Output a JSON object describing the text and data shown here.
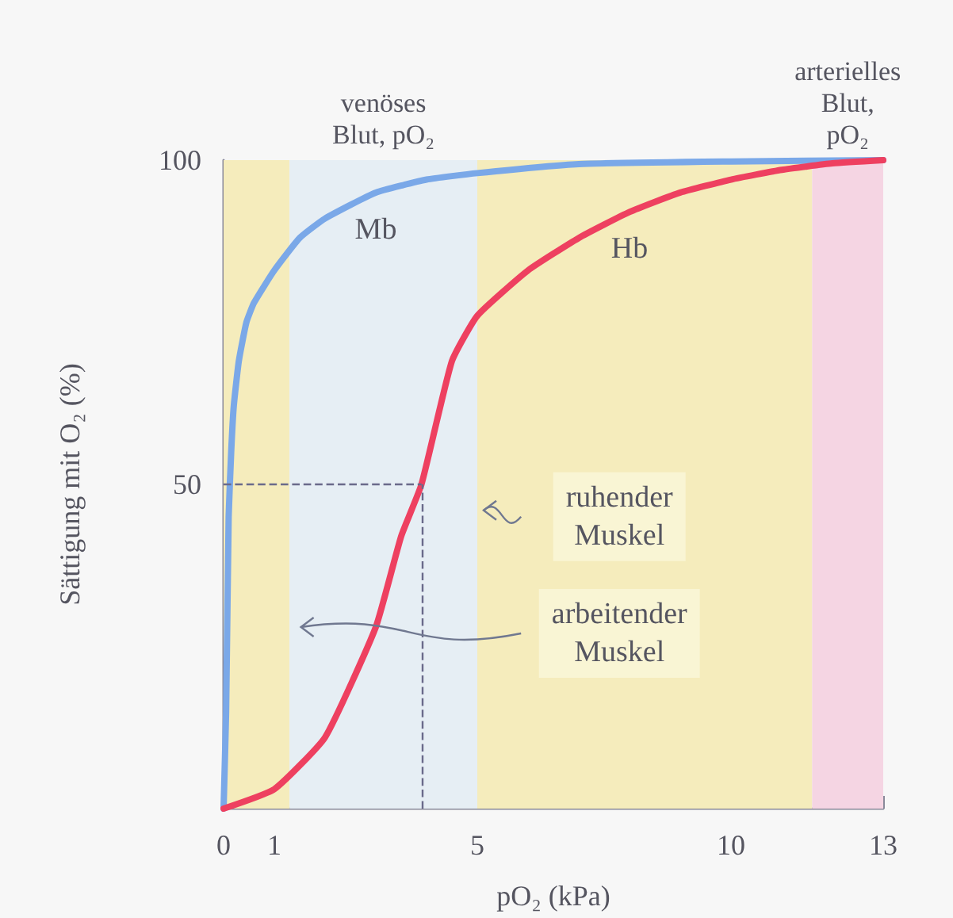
{
  "chart_data": {
    "type": "line",
    "xlabel": "pO₂ (kPa)",
    "ylabel": "Sättigung mit O₂ (%)",
    "x": [
      0,
      0.05,
      0.1,
      0.15,
      0.2,
      0.3,
      0.45,
      0.6,
      1,
      1.5,
      2,
      3,
      4,
      5,
      7,
      10,
      13
    ],
    "series": [
      {
        "name": "Mb",
        "color": "#7aa8e8",
        "values": [
          0,
          15,
          45,
          55,
          62,
          69,
          75,
          78,
          83,
          88,
          91,
          95,
          97,
          98,
          99.4,
          99.8,
          100
        ]
      },
      {
        "name": "Hb",
        "color": "#ee4060",
        "x": [
          0,
          1,
          2,
          3,
          3.5,
          3.9,
          4.5,
          5,
          6,
          7,
          8,
          9,
          10,
          11,
          12,
          13
        ],
        "values": [
          0,
          3,
          11,
          28,
          42,
          50,
          69,
          76,
          83,
          88,
          92,
          95,
          97,
          98.5,
          99.5,
          100
        ]
      }
    ],
    "xlim": [
      0,
      13
    ],
    "xticks": [
      0,
      1,
      5,
      10,
      13
    ],
    "ylim": [
      0,
      100
    ],
    "yticks": [
      50,
      100
    ],
    "bands": [
      {
        "axis": "x",
        "from": 0,
        "to": 1.3,
        "color": "#f5ecbc"
      },
      {
        "axis": "x",
        "from": 1.3,
        "to": 5,
        "color": "#e6eef4",
        "label": "venöses\nBlut, pO₂"
      },
      {
        "axis": "x",
        "from": 5,
        "to": 11.6,
        "color": "#f5ecbc"
      },
      {
        "axis": "x",
        "from": 11.6,
        "to": 13,
        "color": "#f5d5e3",
        "label": "arterielles\nBlut,\npO₂"
      }
    ],
    "ref_lines": [
      {
        "axis": "y",
        "value": 50,
        "color": "#6a6a8a",
        "line_style": "dashed"
      },
      {
        "axis": "x",
        "value": 3.9,
        "color": "#6a6a8a",
        "line_style": "dashed"
      }
    ],
    "annotations": [
      {
        "text": "ruhender\nMuskel",
        "x": 5,
        "y": 46
      },
      {
        "text": "arbeitender\nMuskel",
        "x": 1.4,
        "y": 28
      }
    ],
    "grid": false,
    "legend": false,
    "marker": "none",
    "line_style": "solid"
  }
}
